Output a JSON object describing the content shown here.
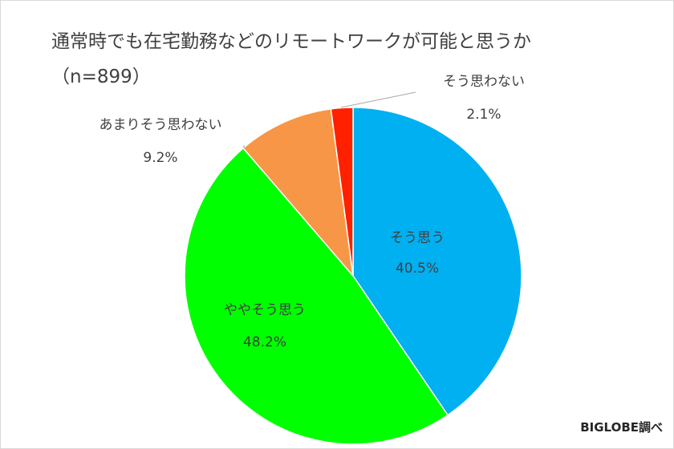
{
  "chart_data": {
    "type": "pie",
    "title": "通常時でも在宅勤務などのリモートワークが可能と思うか",
    "subtitle": "（n=899）",
    "start_angle_deg": 0,
    "direction": "clockwise",
    "slices": [
      {
        "label": "そう思う",
        "value": 40.5,
        "value_label": "40.5%",
        "color": "#00B0F0",
        "label_position": "inside"
      },
      {
        "label": "ややそう思う",
        "value": 48.2,
        "value_label": "48.2%",
        "color": "#00FF00",
        "label_position": "inside"
      },
      {
        "label": "あまりそう思わない",
        "value": 9.2,
        "value_label": "9.2%",
        "color": "#F79646",
        "label_position": "outside"
      },
      {
        "label": "そう思わない",
        "value": 2.1,
        "value_label": "2.1%",
        "color": "#FF2000",
        "label_position": "outside"
      }
    ]
  },
  "source_credit": "BIGLOBE調べ"
}
